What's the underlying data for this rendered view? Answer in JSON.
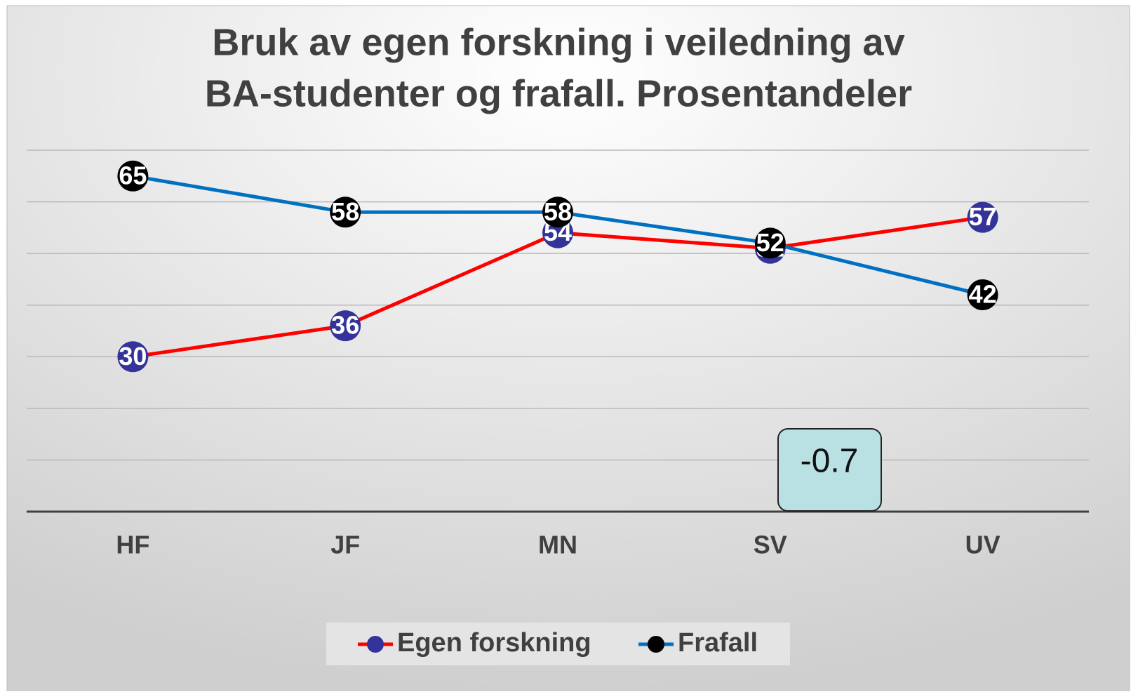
{
  "chart_data": {
    "type": "line",
    "title": [
      "Bruk av egen forskning i veiledning av",
      "BA-studenter og frafall. Prosentandeler"
    ],
    "categories": [
      "HF",
      "JF",
      "MN",
      "SV",
      "UV"
    ],
    "series": [
      {
        "name": "Egen forskning",
        "color": "#ff0000",
        "marker_color": "#333399",
        "values": [
          30,
          36,
          54,
          51,
          57
        ]
      },
      {
        "name": "Frafall",
        "color": "#0070c0",
        "marker_color": "#000000",
        "values": [
          65,
          58,
          58,
          52,
          42
        ]
      }
    ],
    "ylim": [
      0,
      70
    ],
    "yticks": [
      0,
      10,
      20,
      30,
      40,
      50,
      60,
      70
    ],
    "grid": true,
    "legend": "bottom",
    "annotations": [
      {
        "text": "-0.7"
      }
    ]
  }
}
